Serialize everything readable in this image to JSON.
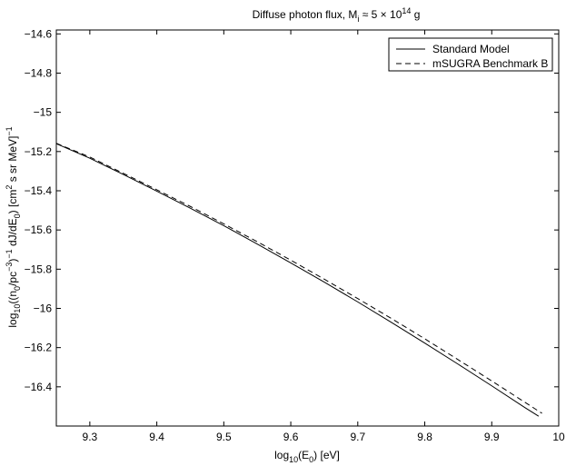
{
  "chart_data": {
    "type": "line",
    "title": {
      "prefix": "Diffuse photon flux, M",
      "sub": "i",
      "middle": " ≈ 5 × 10",
      "sup": "14",
      "suffix": " g"
    },
    "xlabel": {
      "prefix": "log",
      "sub1": "10",
      "middle": "(E",
      "sub2": "0",
      "suffix": ") [eV]"
    },
    "ylabel": {
      "p1": "log",
      "s1": "10",
      "p2": "((n",
      "s2": "0",
      "p3": "/pc",
      "sup1": "−3",
      "p4": ")",
      "sup2": "−1",
      "p5": " dJ/dE",
      "s3": "0",
      "p6": ") [cm",
      "sup3": "2",
      "p7": " s sr MeV]",
      "sup4": "−1"
    },
    "xlim": [
      9.25,
      10.0
    ],
    "ylim": [
      -16.6,
      -14.58
    ],
    "xticks": [
      9.3,
      9.4,
      9.5,
      9.6,
      9.7,
      9.8,
      9.9,
      10
    ],
    "xtick_labels": [
      "9.3",
      "9.4",
      "9.5",
      "9.6",
      "9.7",
      "9.8",
      "9.9",
      "10"
    ],
    "yticks": [
      -14.6,
      -14.8,
      -15,
      -15.2,
      -15.4,
      -15.6,
      -15.8,
      -16,
      -16.2,
      -16.4
    ],
    "ytick_labels": [
      "−14.6",
      "−14.8",
      "−15",
      "−15.2",
      "−15.4",
      "−15.6",
      "−15.8",
      "−16",
      "−16.2",
      "−16.4"
    ],
    "grid": false,
    "legend_position": "top-right",
    "series": [
      {
        "name": "Standard Model",
        "style": "solid",
        "color": "#000000",
        "x": [
          9.25,
          9.3,
          9.35,
          9.4,
          9.45,
          9.5,
          9.55,
          9.6,
          9.65,
          9.7,
          9.75,
          9.8,
          9.85,
          9.9,
          9.95,
          9.97
        ],
        "y": [
          -15.16,
          -15.234,
          -15.317,
          -15.402,
          -15.489,
          -15.578,
          -15.672,
          -15.768,
          -15.866,
          -15.967,
          -16.071,
          -16.177,
          -16.285,
          -16.395,
          -16.507,
          -16.55
        ]
      },
      {
        "name": "mSUGRA Benchmark B",
        "style": "dashed",
        "color": "#000000",
        "x": [
          9.25,
          9.3,
          9.35,
          9.4,
          9.45,
          9.5,
          9.55,
          9.6,
          9.65,
          9.7,
          9.75,
          9.8,
          9.85,
          9.9,
          9.95,
          9.975
        ],
        "y": [
          -15.158,
          -15.228,
          -15.311,
          -15.395,
          -15.48,
          -15.569,
          -15.66,
          -15.754,
          -15.851,
          -15.95,
          -16.051,
          -16.155,
          -16.262,
          -16.37,
          -16.48,
          -16.535
        ]
      }
    ]
  }
}
